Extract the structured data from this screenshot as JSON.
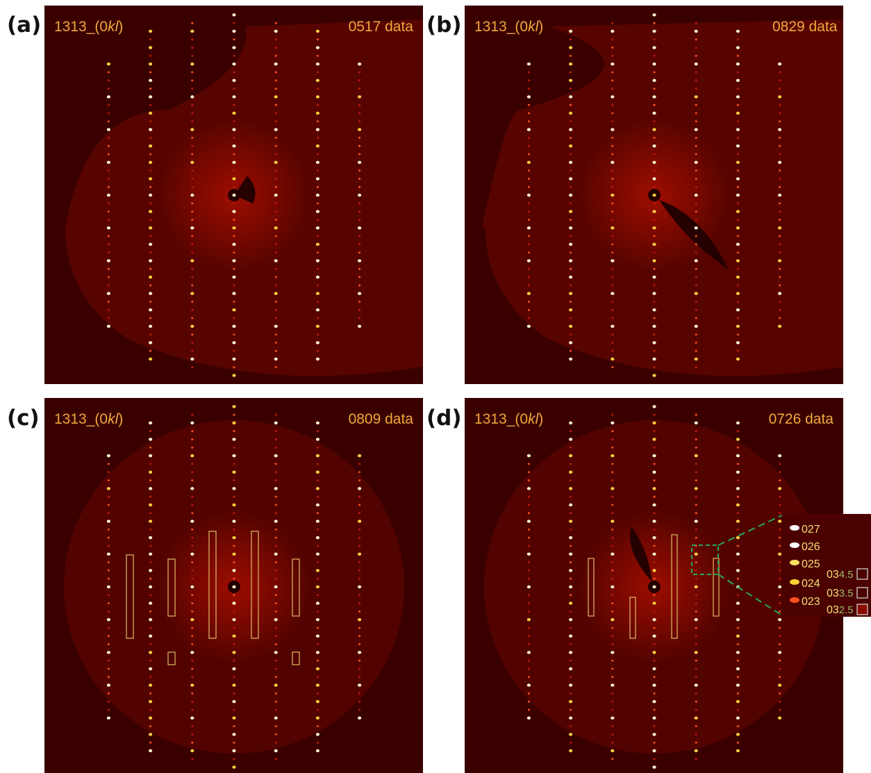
{
  "panels": [
    {
      "label": "(a)",
      "sample": {
        "prefix": "1313_(0",
        "italic": "kl",
        "suffix": ")"
      },
      "dataset": "0517 data"
    },
    {
      "label": "(b)",
      "sample": {
        "prefix": "1313_(0",
        "italic": "kl",
        "suffix": ")"
      },
      "dataset": "0829 data"
    },
    {
      "label": "(c)",
      "sample": {
        "prefix": "1313_(0",
        "italic": "kl",
        "suffix": ")"
      },
      "dataset": "0809 data"
    },
    {
      "label": "(d)",
      "sample": {
        "prefix": "1313_(0",
        "italic": "kl",
        "suffix": ")"
      },
      "dataset": "0726 data"
    }
  ],
  "inset": {
    "integer_peaks": [
      "027",
      "026",
      "025",
      "024",
      "023"
    ],
    "half_peaks": [
      {
        "prefix": "03",
        "suffix": "4.5"
      },
      {
        "prefix": "03",
        "suffix": "3.5"
      },
      {
        "prefix": "03",
        "suffix": "2.5"
      }
    ]
  }
}
